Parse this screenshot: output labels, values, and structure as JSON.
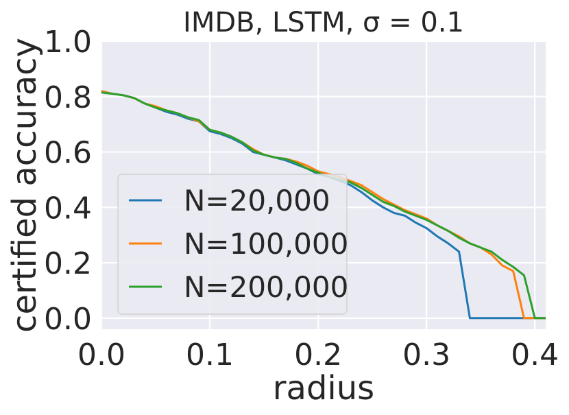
{
  "chart_data": {
    "type": "line",
    "title": "IMDB, LSTM, σ = 0.1",
    "xlabel": "radius",
    "ylabel": "certified accuracy",
    "xlim": [
      0,
      0.41
    ],
    "ylim": [
      -0.04,
      1.0
    ],
    "xticks": [
      "0.0",
      "0.1",
      "0.2",
      "0.3",
      "0.4"
    ],
    "yticks": [
      "0.0",
      "0.2",
      "0.4",
      "0.6",
      "0.8",
      "1.0"
    ],
    "grid": true,
    "legend_position": "lower-left",
    "background_color": "#eaeaf2",
    "x": [
      0.0,
      0.01,
      0.02,
      0.03,
      0.04,
      0.05,
      0.06,
      0.07,
      0.08,
      0.09,
      0.1,
      0.11,
      0.12,
      0.13,
      0.14,
      0.15,
      0.16,
      0.17,
      0.18,
      0.19,
      0.2,
      0.21,
      0.22,
      0.23,
      0.24,
      0.25,
      0.26,
      0.27,
      0.28,
      0.29,
      0.3,
      0.31,
      0.32,
      0.33,
      0.34,
      0.35,
      0.36,
      0.37,
      0.38,
      0.39,
      0.4,
      0.41
    ],
    "series": [
      {
        "name": "N=20,000",
        "color": "#1f77b4",
        "values": [
          0.82,
          0.81,
          0.805,
          0.795,
          0.775,
          0.76,
          0.745,
          0.735,
          0.72,
          0.71,
          0.675,
          0.665,
          0.65,
          0.63,
          0.6,
          0.59,
          0.58,
          0.57,
          0.555,
          0.54,
          0.52,
          0.51,
          0.495,
          0.48,
          0.455,
          0.425,
          0.4,
          0.38,
          0.37,
          0.345,
          0.325,
          0.295,
          0.27,
          0.24,
          0.0,
          0.0,
          0.0,
          0.0,
          0.0,
          0.0,
          0.0,
          0.0
        ]
      },
      {
        "name": "N=100,000",
        "color": "#ff7f0e",
        "values": [
          0.82,
          0.81,
          0.805,
          0.795,
          0.775,
          0.765,
          0.75,
          0.74,
          0.725,
          0.71,
          0.68,
          0.67,
          0.655,
          0.635,
          0.61,
          0.59,
          0.58,
          0.575,
          0.565,
          0.55,
          0.53,
          0.52,
          0.51,
          0.495,
          0.48,
          0.455,
          0.43,
          0.41,
          0.39,
          0.375,
          0.36,
          0.335,
          0.315,
          0.295,
          0.27,
          0.255,
          0.23,
          0.19,
          0.17,
          0.0,
          0.0,
          0.0
        ]
      },
      {
        "name": "N=200,000",
        "color": "#2ca02c",
        "values": [
          0.815,
          0.81,
          0.805,
          0.795,
          0.775,
          0.76,
          0.75,
          0.74,
          0.725,
          0.715,
          0.68,
          0.67,
          0.655,
          0.635,
          0.605,
          0.59,
          0.58,
          0.575,
          0.56,
          0.54,
          0.525,
          0.51,
          0.5,
          0.49,
          0.47,
          0.445,
          0.42,
          0.405,
          0.385,
          0.37,
          0.355,
          0.335,
          0.315,
          0.29,
          0.27,
          0.255,
          0.24,
          0.21,
          0.185,
          0.155,
          0.0,
          0.0
        ]
      }
    ]
  }
}
